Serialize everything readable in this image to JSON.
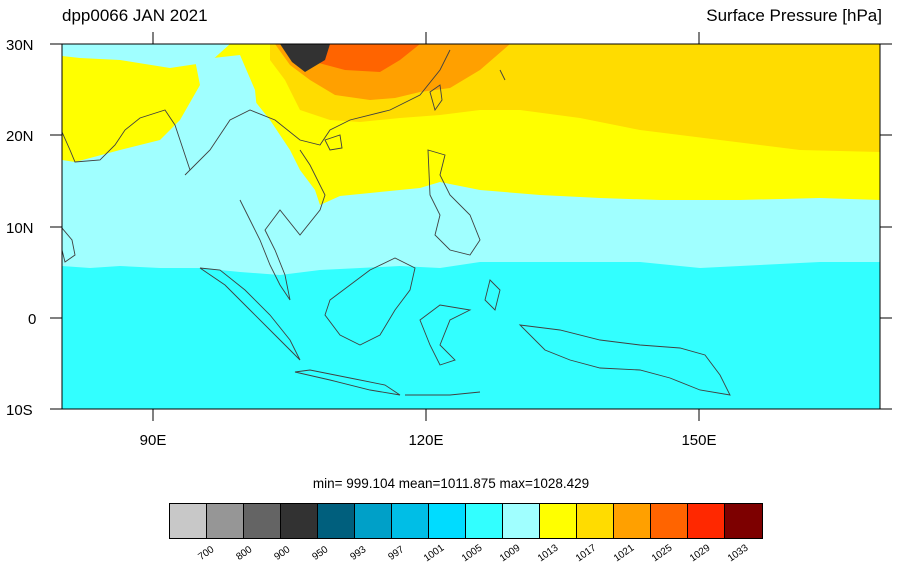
{
  "title_left": "dpp0066 JAN 2021",
  "title_right": "Surface Pressure [hPa]",
  "lat_ticks": [
    "30N",
    "20N",
    "10N",
    "0",
    "10S"
  ],
  "lon_ticks": [
    "90E",
    "120E",
    "150E"
  ],
  "stats": "min= 999.104  mean=1011.875  max=1028.429",
  "colorbar": {
    "colors": [
      "#c8c8c8",
      "#969696",
      "#646464",
      "#323232",
      "#005f7d",
      "#00a0c8",
      "#00bee6",
      "#00dcff",
      "#32ffff",
      "#a0ffff",
      "#ffff00",
      "#ffdc00",
      "#ffa000",
      "#ff6400",
      "#ff2800",
      "#7d0000"
    ],
    "labels": [
      "700",
      "800",
      "900",
      "950",
      "993",
      "997",
      "1001",
      "1005",
      "1009",
      "1013",
      "1017",
      "1021",
      "1025",
      "1029",
      "1033"
    ]
  },
  "map_colors": {
    "band_1005_1009": "#32ffff",
    "band_1009_1013": "#a0ffff",
    "band_1013_1017": "#ffff00",
    "band_1017_1021": "#ffdc00",
    "band_1021_1025": "#ffa000",
    "band_1025_1029": "#ff6400",
    "band_dark": "#323232",
    "coastline": "#404040"
  }
}
